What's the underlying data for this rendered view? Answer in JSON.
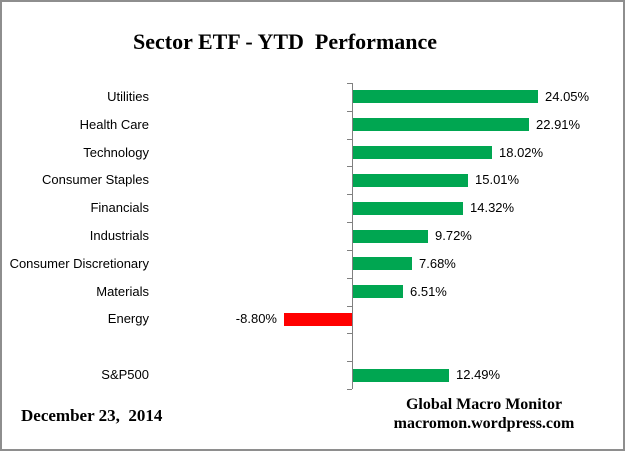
{
  "title": "Sector ETF - YTD  Performance",
  "footer": {
    "date": "December 23,  2014",
    "attribution_line1": "Global Macro Monitor",
    "attribution_line2": "macromon.wordpress.com"
  },
  "chart_data": {
    "type": "bar",
    "orientation": "horizontal",
    "title": "Sector ETF - YTD  Performance",
    "categories": [
      "Utilities",
      "Health Care",
      "Technology",
      "Consumer Staples",
      "Financials",
      "Industrials",
      "Consumer Discretionary",
      "Materials",
      "Energy",
      "",
      "S&P500"
    ],
    "values": [
      24.05,
      22.91,
      18.02,
      15.01,
      14.32,
      9.72,
      7.68,
      6.51,
      -8.8,
      null,
      12.49
    ],
    "value_labels": [
      "24.05%",
      "22.91%",
      "18.02%",
      "15.01%",
      "14.32%",
      "9.72%",
      "7.68%",
      "6.51%",
      "-8.80%",
      "",
      "12.49%"
    ],
    "value_suffix": "%",
    "positive_color": "#00A651",
    "negative_color": "#FF0000",
    "axis_color": "#808080",
    "grid": false,
    "legend": false,
    "xlabel": "",
    "ylabel": ""
  }
}
